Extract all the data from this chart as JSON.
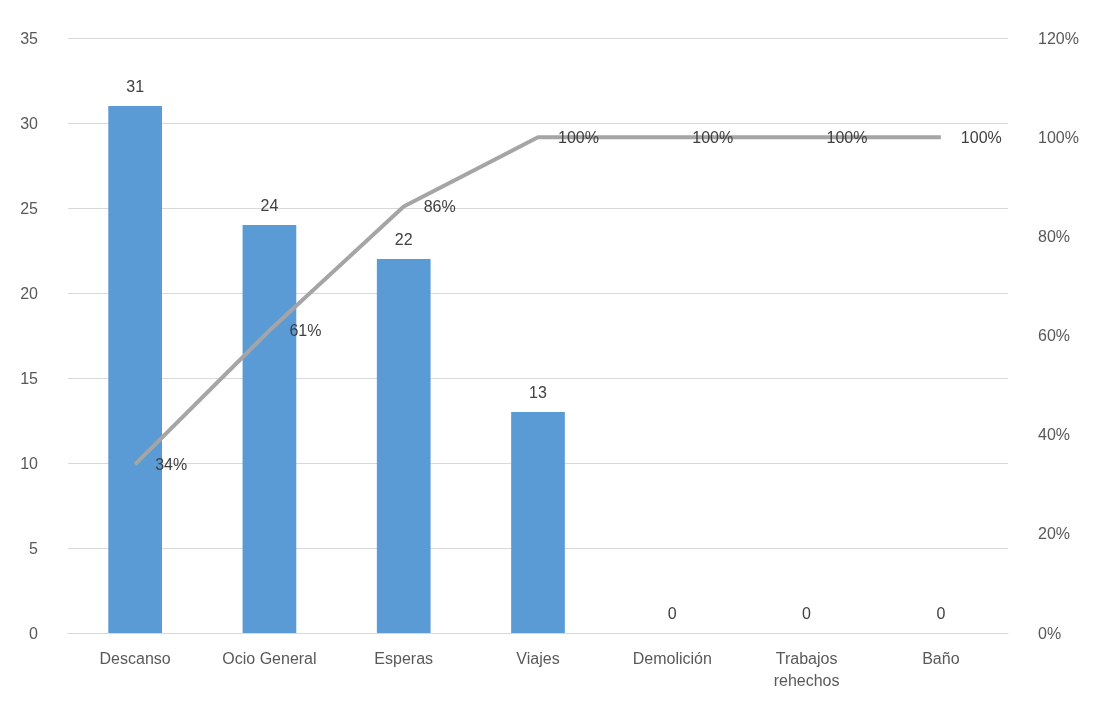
{
  "chart_data": {
    "type": "bar",
    "categories": [
      "Descanso",
      "Ocio General",
      "Esperas",
      "Viajes",
      "Demolición",
      "Trabajos\nrehechos",
      "Baño"
    ],
    "series": [
      {
        "color": "#5b9bd5",
        "values": [
          31,
          24,
          22,
          13,
          0,
          0,
          0
        ]
      },
      {
        "type": "line",
        "axis": "y2",
        "color": "#a5a5a5",
        "values": [
          34,
          61,
          86,
          100,
          100,
          100,
          100
        ],
        "value_labels": [
          "34%",
          "61%",
          "86%",
          "100%",
          "100%",
          "100%",
          "100%"
        ]
      }
    ],
    "ylim": [
      0,
      35
    ],
    "yticks": [
      0,
      5,
      10,
      15,
      20,
      25,
      30,
      35
    ],
    "y2lim": [
      0,
      120
    ],
    "y2ticks": [
      {
        "value": 0,
        "label": "0%"
      },
      {
        "value": 20,
        "label": "20%"
      },
      {
        "value": 40,
        "label": "40%"
      },
      {
        "value": 60,
        "label": "60%"
      },
      {
        "value": 80,
        "label": "80%"
      },
      {
        "value": 100,
        "label": "100%"
      },
      {
        "value": 120,
        "label": "120%"
      }
    ],
    "grid": "y",
    "data_labels": true,
    "marker": "none",
    "line_style": "solid"
  }
}
